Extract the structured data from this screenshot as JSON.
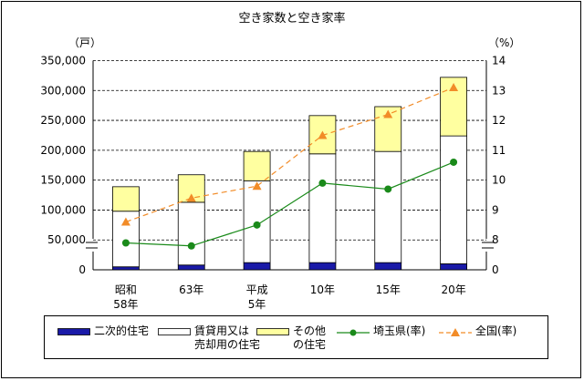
{
  "chart_data": {
    "type": "bar",
    "title": "空き家数と空き家率",
    "left_axis_unit": "（戸）",
    "right_axis_unit": "（%）",
    "categories": [
      [
        "昭和",
        "58年"
      ],
      [
        "63年"
      ],
      [
        "平成",
        "5年"
      ],
      [
        "10年"
      ],
      [
        "15年"
      ],
      [
        "20年"
      ]
    ],
    "left_ticks": [
      "0",
      "50,000",
      "100,000",
      "150,000",
      "200,000",
      "250,000",
      "300,000",
      "350,000"
    ],
    "right_ticks": [
      "0",
      "8",
      "9",
      "10",
      "11",
      "12",
      "13",
      "14"
    ],
    "ylim_left": [
      0,
      350000
    ],
    "ylim_right": [
      7,
      14
    ],
    "axis_break": true,
    "grid": "horizontal dashed",
    "stacked_series": [
      {
        "name": "二次的住宅",
        "color": "#1a1aa8",
        "values": [
          5000,
          8000,
          12000,
          12000,
          12000,
          10000
        ]
      },
      {
        "name": "賃貸用又は売却用の住宅",
        "color": "#ffffff",
        "values": [
          93000,
          105000,
          137000,
          182000,
          186000,
          214000
        ]
      },
      {
        "name": "その他の住宅",
        "color": "#ffffa0",
        "values": [
          41000,
          46000,
          49000,
          64000,
          75000,
          98000
        ]
      }
    ],
    "line_series": [
      {
        "name": "埼玉県(率)",
        "color": "#1a8a1a",
        "marker": "circle",
        "dash": "solid",
        "values": [
          7.9,
          7.8,
          8.5,
          9.9,
          9.7,
          10.6
        ]
      },
      {
        "name": "全国(率)",
        "color": "#f28c28",
        "marker": "triangle",
        "dash": "dashed",
        "values": [
          8.6,
          9.4,
          9.8,
          11.5,
          12.2,
          13.1
        ]
      }
    ]
  },
  "legend": {
    "items": [
      {
        "kind": "bar",
        "color": "#1a1aa8",
        "lines": [
          "二次的住宅"
        ]
      },
      {
        "kind": "bar",
        "color": "#ffffff",
        "lines": [
          "賃貸用又は",
          "売却用の住宅"
        ]
      },
      {
        "kind": "bar",
        "color": "#ffffa0",
        "lines": [
          "その他",
          "の住宅"
        ]
      },
      {
        "kind": "line",
        "color": "#1a8a1a",
        "marker": "circle",
        "lines": [
          "埼玉県(率)"
        ]
      },
      {
        "kind": "line",
        "color": "#f28c28",
        "marker": "triangle",
        "lines": [
          "全国(率)"
        ]
      }
    ]
  }
}
